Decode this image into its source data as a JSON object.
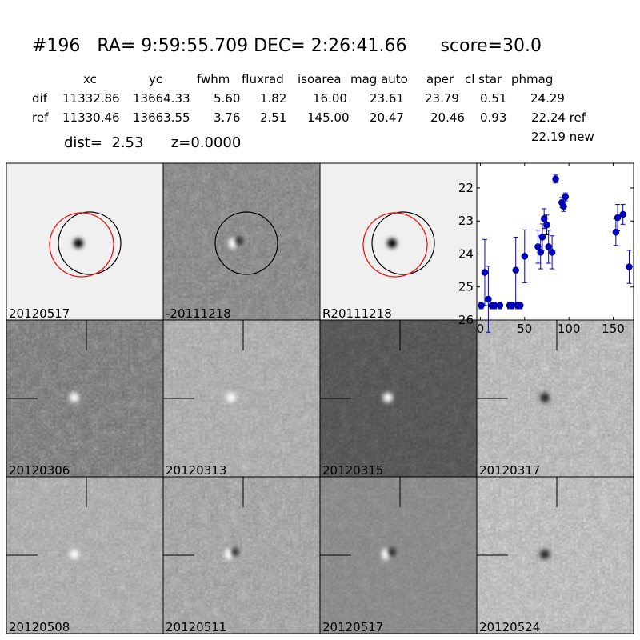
{
  "header": {
    "title": "#196   RA= 9:59:55.709 DEC= 2:26:41.66      score=30.0",
    "dist": "dist=  2.53      z=0.0000",
    "note": "22.19 new"
  },
  "table": {
    "columns": [
      "xc",
      "yc",
      "fwhm",
      "fluxrad",
      "isoarea",
      "mag auto",
      "aper",
      "cl star",
      "phmag"
    ],
    "rows": [
      [
        "dif",
        "11332.86",
        "13664.33",
        "5.60",
        "1.82",
        "16.00",
        "23.61",
        "23.79",
        "0.51",
        "24.29"
      ],
      [
        "ref",
        "11330.46",
        "13663.55",
        "3.76",
        "2.51",
        "145.00",
        "20.47",
        "20.46",
        "0.93",
        "22.24 ref"
      ]
    ]
  },
  "stamps": [
    {
      "label": "20120517"
    },
    {
      "label": "-20111218"
    },
    {
      "label": "R20111218"
    },
    {
      "label": "20120306"
    },
    {
      "label": "20120313"
    },
    {
      "label": "20120315"
    },
    {
      "label": "20120317"
    },
    {
      "label": "20120508"
    },
    {
      "label": "20120511"
    },
    {
      "label": "20120517",
      "color": "#ff0000"
    },
    {
      "label": "20120524"
    }
  ],
  "chart_data": {
    "type": "scatter",
    "xlim": [
      -4,
      173
    ],
    "ylim": [
      26,
      21.25
    ],
    "xticks": [
      0,
      50,
      100,
      150
    ],
    "yticks": [
      22,
      23,
      24,
      25,
      26
    ],
    "series": [
      {
        "color": "#0000cc",
        "x": [
          1,
          5,
          9,
          13,
          16,
          22,
          33,
          36,
          40,
          42,
          45,
          50,
          65,
          68,
          70,
          72,
          75,
          77,
          81,
          85,
          92,
          94,
          96,
          153,
          155,
          161,
          168
        ],
        "values": [
          25.56,
          24.56,
          25.37,
          25.56,
          25.56,
          25.56,
          25.56,
          25.56,
          24.49,
          25.56,
          25.56,
          24.07,
          23.78,
          23.95,
          23.49,
          22.93,
          23.12,
          23.78,
          23.95,
          21.73,
          22.44,
          22.56,
          22.27,
          23.34,
          22.9,
          22.8,
          24.39
        ],
        "errors": [
          0.1,
          1.0,
          1.0,
          0.1,
          0.1,
          0.1,
          0.1,
          0.1,
          1.0,
          0.1,
          0.1,
          0.8,
          0.5,
          0.5,
          0.4,
          0.3,
          0.3,
          0.5,
          0.5,
          0.12,
          0.15,
          0.15,
          0.12,
          0.4,
          0.4,
          0.3,
          0.5
        ]
      }
    ]
  }
}
